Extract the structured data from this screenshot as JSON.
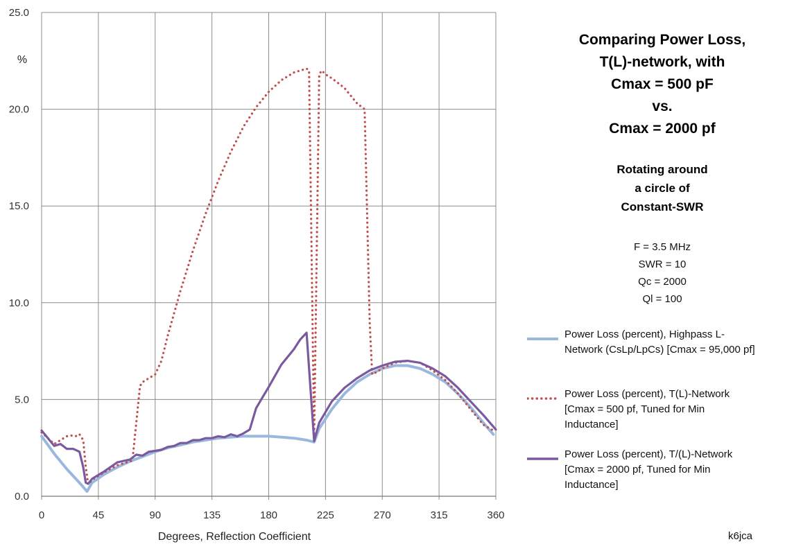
{
  "title": {
    "lines": [
      "Comparing Power Loss,",
      "T(L)-network, with",
      "Cmax = 500 pF",
      "vs.",
      "Cmax  = 2000 pf"
    ]
  },
  "subtitle": {
    "lines": [
      "Rotating around",
      "a circle of",
      "Constant-SWR"
    ]
  },
  "params": {
    "lines": [
      "F = 3.5 MHz",
      "SWR = 10",
      "Qc = 2000",
      "Ql = 100"
    ]
  },
  "credit": "k6jca",
  "colors": {
    "highpass": "#9ab8de",
    "t500": "#c0504d",
    "t2000": "#7a5a9e",
    "grid": "#8c8c8c"
  },
  "chart_data": {
    "type": "line",
    "title": "Comparing Power Loss, T(L)-network, with Cmax = 500 pF vs. Cmax = 2000 pf",
    "xlabel": "Degrees, Reflection Coefficient",
    "ylabel": "%",
    "xlim": [
      0,
      360
    ],
    "ylim": [
      0,
      25
    ],
    "xticks": [
      0,
      45,
      90,
      135,
      180,
      225,
      270,
      315,
      360
    ],
    "xtick_labels": [
      "0",
      "45",
      "90",
      "135",
      "180",
      "225",
      "270",
      "315",
      "360"
    ],
    "yticks": [
      0,
      5,
      10,
      15,
      20,
      25
    ],
    "ytick_labels": [
      "0.0",
      "5.0",
      "10.0",
      "15.0",
      "20.0",
      "25.0"
    ],
    "grid": true,
    "legend_position": "right",
    "series": [
      {
        "name": "Power Loss (percent), Highpass L-Network (CsLp/LpCs)  [Cmax = 95,000 pf]",
        "legend_lines": [
          "Power Loss (percent), Highpass L-",
          "Network (CsLp/LpCs)  [Cmax = 95,000 pf]"
        ],
        "style": "solid",
        "color": "#9ab8de",
        "x": [
          0,
          10,
          20,
          30,
          36,
          40,
          50,
          60,
          70,
          80,
          90,
          100,
          110,
          120,
          130,
          140,
          150,
          160,
          170,
          180,
          190,
          200,
          210,
          216,
          220,
          230,
          240,
          250,
          260,
          270,
          280,
          290,
          300,
          310,
          320,
          330,
          340,
          350,
          358
        ],
        "y": [
          3.1,
          2.2,
          1.4,
          0.7,
          0.25,
          0.7,
          1.15,
          1.5,
          1.8,
          2.05,
          2.3,
          2.5,
          2.65,
          2.8,
          2.9,
          3.0,
          3.05,
          3.1,
          3.1,
          3.1,
          3.05,
          3.0,
          2.9,
          2.8,
          3.5,
          4.5,
          5.3,
          5.9,
          6.3,
          6.6,
          6.75,
          6.75,
          6.6,
          6.3,
          5.9,
          5.3,
          4.6,
          3.8,
          3.2
        ]
      },
      {
        "name": "Power Loss (percent), T(L)-Network [Cmax = 500 pf, Tuned for Min Inductance]",
        "legend_lines": [
          "Power Loss (percent), T(L)-Network",
          "[Cmax = 500 pf, Tuned for Min",
          "Inductance]"
        ],
        "style": "dotted",
        "color": "#c0504d",
        "x": [
          0,
          10,
          15,
          20,
          25,
          28,
          30,
          33,
          35,
          37,
          40,
          50,
          60,
          70,
          72,
          75,
          78,
          80,
          90,
          95,
          100,
          110,
          120,
          130,
          140,
          150,
          160,
          170,
          180,
          190,
          200,
          205,
          210,
          212,
          216,
          220,
          222,
          225,
          230,
          240,
          250,
          256,
          260,
          262,
          265,
          270,
          280,
          290,
          300,
          310,
          320,
          330,
          340,
          350,
          358
        ],
        "y": [
          3.3,
          2.7,
          2.9,
          3.1,
          3.15,
          3.1,
          3.2,
          2.9,
          1.5,
          0.6,
          0.85,
          1.25,
          1.6,
          1.8,
          1.85,
          3.8,
          5.7,
          5.9,
          6.3,
          7.0,
          8.3,
          10.6,
          12.7,
          14.6,
          16.3,
          17.8,
          19.1,
          20.1,
          20.9,
          21.5,
          21.9,
          22.0,
          22.1,
          22.0,
          3.0,
          21.8,
          22.0,
          21.8,
          21.6,
          21.1,
          20.3,
          20.0,
          9.0,
          6.3,
          6.4,
          6.6,
          6.9,
          7.0,
          6.9,
          6.5,
          6.0,
          5.3,
          4.5,
          3.7,
          3.4
        ]
      },
      {
        "name": "Power Loss (percent), T/(L)-Network [Cmax = 2000 pf, Tuned for Min Inductance]",
        "legend_lines": [
          "Power Loss (percent), T/(L)-Network",
          "[Cmax = 2000 pf, Tuned for Min",
          "Inductance]"
        ],
        "style": "solid",
        "color": "#7a5a9e",
        "x": [
          0,
          10,
          15,
          20,
          25,
          30,
          33,
          35,
          37,
          40,
          50,
          60,
          70,
          75,
          80,
          85,
          90,
          95,
          100,
          105,
          110,
          115,
          120,
          125,
          130,
          135,
          140,
          145,
          150,
          155,
          160,
          165,
          170,
          175,
          180,
          190,
          200,
          205,
          210,
          216,
          220,
          230,
          240,
          250,
          260,
          270,
          280,
          290,
          300,
          310,
          320,
          330,
          340,
          350,
          360
        ],
        "y": [
          3.4,
          2.6,
          2.7,
          2.45,
          2.45,
          2.3,
          1.5,
          0.7,
          0.65,
          0.9,
          1.3,
          1.75,
          1.9,
          2.15,
          2.1,
          2.3,
          2.35,
          2.4,
          2.55,
          2.6,
          2.75,
          2.75,
          2.9,
          2.9,
          3.0,
          3.0,
          3.1,
          3.05,
          3.2,
          3.1,
          3.25,
          3.45,
          4.55,
          5.1,
          5.65,
          6.8,
          7.6,
          8.1,
          8.45,
          2.85,
          3.8,
          4.9,
          5.6,
          6.1,
          6.5,
          6.75,
          6.95,
          7.0,
          6.9,
          6.6,
          6.2,
          5.6,
          4.9,
          4.2,
          3.45
        ]
      }
    ]
  }
}
